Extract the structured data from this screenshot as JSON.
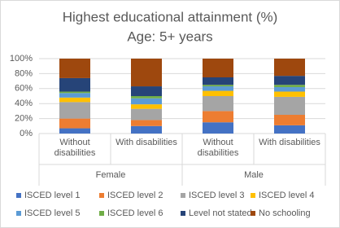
{
  "chart_data": {
    "type": "stacked-bar",
    "title": "Highest educational attainment (%)",
    "subtitle": "Age: 5+ years",
    "groups": [
      {
        "name": "Female",
        "categories": [
          "Without disabilities",
          "With disabilities"
        ]
      },
      {
        "name": "Male",
        "categories": [
          "Without disabilities",
          "With disabilities"
        ]
      }
    ],
    "series": [
      {
        "name": "ISCED level 1",
        "color": "#4472c4",
        "values": [
          7,
          10,
          15,
          11
        ]
      },
      {
        "name": "ISCED level 2",
        "color": "#ed7d31",
        "values": [
          13,
          8,
          15,
          14
        ]
      },
      {
        "name": "ISCED level 3",
        "color": "#a5a5a5",
        "values": [
          22,
          15,
          20,
          24
        ]
      },
      {
        "name": "ISCED level 4",
        "color": "#ffc000",
        "values": [
          6,
          6,
          7,
          7
        ]
      },
      {
        "name": "ISCED level 5",
        "color": "#5b9bd5",
        "values": [
          6,
          8,
          6,
          6
        ]
      },
      {
        "name": "ISCED level 6",
        "color": "#70ad47",
        "values": [
          2,
          3,
          2,
          3
        ]
      },
      {
        "name": "Level not stated",
        "color": "#264478",
        "values": [
          18,
          13,
          10,
          12
        ]
      },
      {
        "name": "No schooling",
        "color": "#9e480e",
        "values": [
          26,
          37,
          25,
          23
        ]
      }
    ],
    "ylim": [
      0,
      100
    ],
    "yticks": [
      {
        "value": 0,
        "label": "0%"
      },
      {
        "value": 20,
        "label": "20%"
      },
      {
        "value": 40,
        "label": "40%"
      },
      {
        "value": 60,
        "label": "60%"
      },
      {
        "value": 80,
        "label": "80%"
      },
      {
        "value": 100,
        "label": "100%"
      }
    ],
    "grid": true,
    "legend": "bottom"
  }
}
